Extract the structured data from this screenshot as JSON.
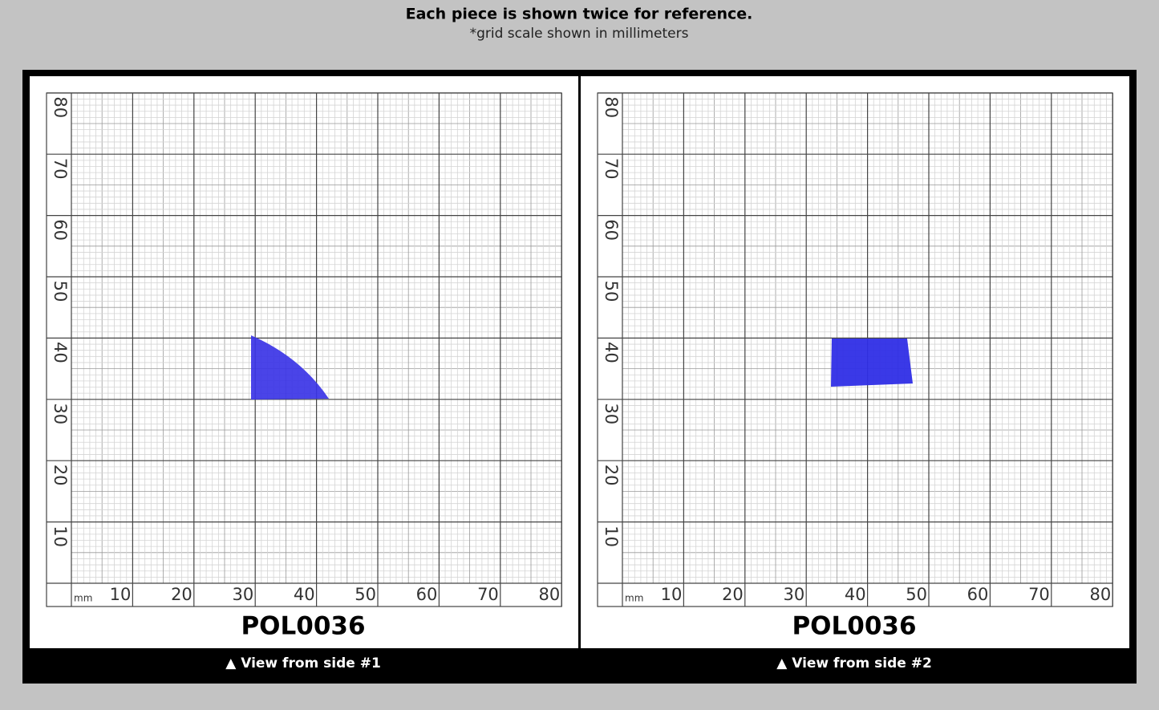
{
  "header": {
    "title": "Each piece is shown twice for reference.",
    "subtitle": "*grid scale shown in millimeters"
  },
  "grid": {
    "unit": "mm",
    "x_labels": [
      "10",
      "20",
      "30",
      "40",
      "50",
      "60",
      "70",
      "80"
    ],
    "y_labels": [
      "10",
      "20",
      "30",
      "40",
      "50",
      "60",
      "70",
      "80"
    ]
  },
  "panels": [
    {
      "code": "POL0036",
      "caption": "▲ View from side #1"
    },
    {
      "code": "POL0036",
      "caption": "▲ View from side #2"
    }
  ]
}
